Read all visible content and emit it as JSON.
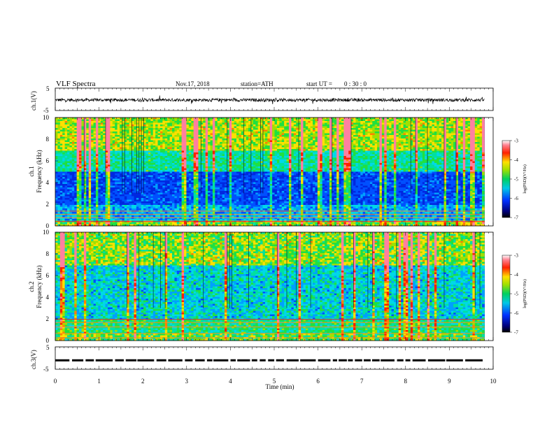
{
  "header": {
    "title": "VLF  Spectra",
    "date": "Nov.17, 2018",
    "station": "station=ATH",
    "start_ut_label": "start  UT  =",
    "start_ut_value": "0  : 30 : 0"
  },
  "chart_data": [
    {
      "type": "line",
      "panel": "ch1-waveform",
      "ylabel": "ch.1(V)",
      "ylim": [
        -5,
        5
      ],
      "yticks": [
        "5",
        "-5"
      ],
      "x_range_min": [
        0,
        9.8
      ],
      "description_values": "oscillating voltage trace around -0.3 V with spikes to about ±1.5 V"
    },
    {
      "type": "heatmap",
      "panel": "ch1-spectrogram",
      "ylabel": "ch.1\nFrequency (kHz)",
      "ylabel_line1": "ch.1",
      "ylabel_line2": "Frequency  (kHz)",
      "ylim": [
        0,
        10
      ],
      "yticks": [
        "10",
        "8",
        "6",
        "4",
        "2",
        "0"
      ],
      "x_range_min": [
        0,
        9.8
      ],
      "colorbar": {
        "label": "log(PSD)(V²/Hz)",
        "range": [
          -7,
          -3
        ],
        "ticks": [
          "-3",
          "-4",
          "-5",
          "-6",
          "-7"
        ]
      }
    },
    {
      "type": "heatmap",
      "panel": "ch2-spectrogram",
      "ylabel_line1": "ch.2",
      "ylabel_line2": "Frequency  (kHz)",
      "ylim": [
        0,
        10
      ],
      "yticks": [
        "10",
        "8",
        "6",
        "4",
        "2",
        "0"
      ],
      "x_range_min": [
        0,
        9.8
      ],
      "colorbar": {
        "label": "log(PSD)(V²/Hz)",
        "range": [
          -7,
          -3
        ],
        "ticks": [
          "-3",
          "-4",
          "-5",
          "-6",
          "-7"
        ]
      }
    },
    {
      "type": "line",
      "panel": "ch3-waveform",
      "ylabel": "ch.3(V)",
      "ylim": [
        -5,
        5
      ],
      "yticks": [
        "5",
        "-5"
      ],
      "level_v": -1,
      "x_range_min": [
        0,
        9.8
      ]
    }
  ],
  "x_axis": {
    "label": "Time  (min)",
    "ticks": [
      "0",
      "1",
      "2",
      "3",
      "4",
      "5",
      "6",
      "7",
      "8",
      "9",
      "10"
    ],
    "range": [
      0,
      10
    ]
  }
}
